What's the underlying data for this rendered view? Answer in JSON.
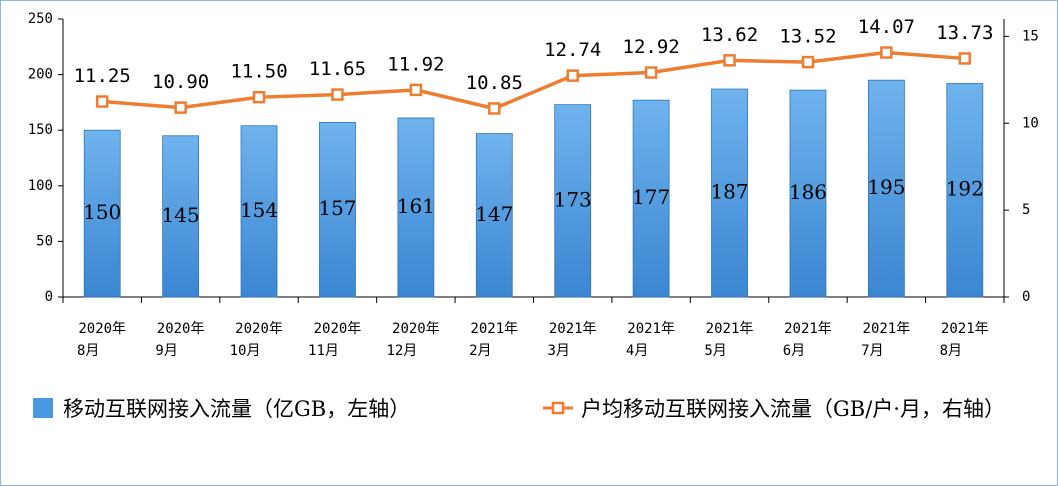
{
  "chart_data": {
    "type": "bar-line",
    "categories": [
      [
        "2020年",
        "8月"
      ],
      [
        "2020年",
        "9月"
      ],
      [
        "2020年",
        "10月"
      ],
      [
        "2020年",
        "11月"
      ],
      [
        "2020年",
        "12月"
      ],
      [
        "2021年",
        "2月"
      ],
      [
        "2021年",
        "3月"
      ],
      [
        "2021年",
        "4月"
      ],
      [
        "2021年",
        "5月"
      ],
      [
        "2021年",
        "6月"
      ],
      [
        "2021年",
        "7月"
      ],
      [
        "2021年",
        "8月"
      ]
    ],
    "series": [
      {
        "name": "移动互联网接入流量（亿GB，左轴）",
        "type": "bar",
        "color": "#4a98e0",
        "values": [
          150,
          145,
          154,
          157,
          161,
          147,
          173,
          177,
          187,
          186,
          195,
          192
        ]
      },
      {
        "name": "户均移动互联网接入流量（GB/户·月，右轴）",
        "type": "line",
        "axis": "y2",
        "color": "#ed7d31",
        "values": [
          11.25,
          10.9,
          11.5,
          11.65,
          11.92,
          10.85,
          12.74,
          12.92,
          13.62,
          13.52,
          14.07,
          13.73
        ],
        "value_labels": [
          "11.25",
          "10.90",
          "11.50",
          "11.65",
          "11.92",
          "10.85",
          "12.74",
          "12.92",
          "13.62",
          "13.52",
          "14.07",
          "13.73"
        ]
      }
    ],
    "ylim": [
      0,
      250
    ],
    "yticks": [
      0,
      50,
      100,
      150,
      200,
      250
    ],
    "y2lim": [
      0,
      16
    ],
    "y2ticks": [
      0,
      5,
      10,
      15
    ]
  }
}
